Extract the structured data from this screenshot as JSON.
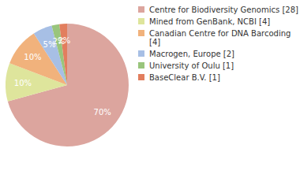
{
  "chart_data": {
    "type": "pie",
    "categories": [
      "Centre for Biodiversity Genomics [28]",
      "Mined from GenBank, NCBI [4]",
      "Canadian Centre for DNA Barcoding [4]",
      "Macrogen, Europe [2]",
      "University of Oulu [1]",
      "BaseClear B.V. [1]"
    ],
    "values": [
      70,
      10,
      10,
      5,
      2,
      2
    ],
    "value_labels": [
      "70%",
      "10%",
      "10%",
      "5%",
      "2%",
      "2%"
    ],
    "colors": [
      "#dca59e",
      "#dee59c",
      "#f1b27c",
      "#a7bfe5",
      "#99c57c",
      "#e27e5e"
    ],
    "data_labels": true,
    "legend": "top-right"
  }
}
